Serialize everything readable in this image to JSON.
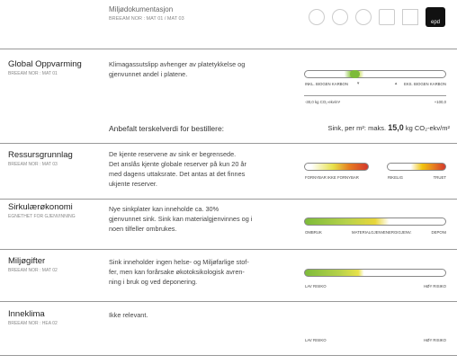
{
  "header": {
    "title": "Miljødokumentasjon",
    "subtitle": "BREEAM NOR : MAT 01 / MAT 03",
    "logo_text": "epd"
  },
  "sections": [
    {
      "title": "Global Oppvarming",
      "subtitle": "BREEAM NOR : MAT 01",
      "lines": [
        "Klimagassutslipp avhenger av platetykkelse og",
        "gjenvunnet andel i platene."
      ],
      "scale_labels": [
        "INKL. BIOGEN KARBON",
        "EKS. BIOGEN KARBON"
      ],
      "range_labels": [
        "-30,0 kg CO₂-ekv/m²",
        "+100,0"
      ],
      "threshold_label": "Anbefalt terskelverdi for bestillere:",
      "threshold_prefix": "Sink, per m²: maks.",
      "threshold_value": "15,0",
      "threshold_unit": "kg CO₂-ekv/m²"
    },
    {
      "title": "Ressursgrunnlag",
      "subtitle": "BREEAM NOR : MAT 03",
      "lines": [
        "De kjente reservene av sink er begrensede.",
        "Det anslås kjente globale reserver på kun 20 år",
        "med dagens uttaksrate. Det antas at det finnes",
        "ukjente reserver."
      ],
      "scale_labels": [
        "FORNYBAR",
        "IKKE FORNYBAR",
        "RIKELIG",
        "TRUET"
      ]
    },
    {
      "title": "Sirkulærøkonomi",
      "subtitle": "EGNETHET FOR GJENVINNING",
      "lines": [
        "Nye sinkplater kan inneholde ca. 30%",
        "gjenvunnet sink. Sink kan materialgjenvinnes og i",
        "noen tilfeller ombrukes."
      ],
      "scale_labels": [
        "OMBRUK",
        "MATERIALGJENV.",
        "ENERGIGJENV.",
        "DEPONI"
      ]
    },
    {
      "title": "Miljøgifter",
      "subtitle": "BREEAM NOR : MAT 02",
      "lines": [
        "Sink inneholder ingen helse- og Miljøfarlige stof-",
        "fer, men kan forårsake økotoksikologisk avren-",
        "ning i bruk og ved deponering."
      ],
      "scale_labels": [
        "LAV RISIKO",
        "HØY RISIKO"
      ]
    },
    {
      "title": "Inneklima",
      "subtitle": "BREEAM NOR : HEA 02",
      "lines": [
        "Ikke relevant."
      ],
      "scale_labels": [
        "LAV RISIKO",
        "HØY RISIKO"
      ]
    }
  ]
}
